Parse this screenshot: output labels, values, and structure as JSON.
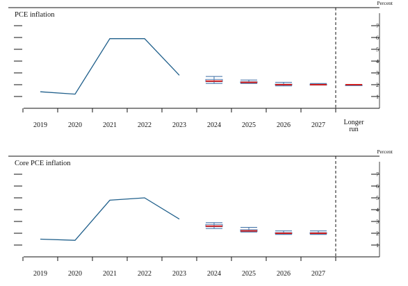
{
  "chart_data": [
    {
      "type": "line",
      "title": "PCE inflation",
      "ylabel": "Percent",
      "ylim": [
        0,
        8
      ],
      "yticks": [
        "1",
        "2",
        "3",
        "4",
        "5",
        "6",
        "7"
      ],
      "categories": [
        "2019",
        "2020",
        "2021",
        "2022",
        "2023",
        "2024",
        "2025",
        "2026",
        "2027",
        "Longer run"
      ],
      "series": [
        {
          "values": [
            1.4,
            1.2,
            5.9,
            5.9,
            2.8,
            null,
            null,
            null,
            null,
            null
          ]
        }
      ],
      "projections": [
        {
          "category": "2024",
          "low": 2.1,
          "high": 2.7,
          "central_low": 2.25,
          "central_high": 2.45,
          "median": 2.3
        },
        {
          "category": "2025",
          "low": 2.1,
          "high": 2.4,
          "central_low": 2.15,
          "central_high": 2.25,
          "median": 2.2
        },
        {
          "category": "2026",
          "low": 1.9,
          "high": 2.2,
          "central_low": 2.0,
          "central_high": 2.05,
          "median": 2.0
        },
        {
          "category": "2027",
          "low": 2.0,
          "high": 2.1,
          "central_low": 2.0,
          "central_high": 2.05,
          "median": 2.0
        },
        {
          "category": "Longer run",
          "low": 2.0,
          "high": 2.0,
          "central_low": 2.0,
          "central_high": 2.0,
          "median": 2.0
        }
      ]
    },
    {
      "type": "line",
      "title": "Core PCE inflation",
      "ylabel": "Percent",
      "ylim": [
        0,
        8
      ],
      "yticks": [
        "1",
        "2",
        "3",
        "4",
        "5",
        "6",
        "7"
      ],
      "categories": [
        "2019",
        "2020",
        "2021",
        "2022",
        "2023",
        "2024",
        "2025",
        "2026",
        "2027"
      ],
      "series": [
        {
          "values": [
            1.5,
            1.4,
            4.8,
            5.0,
            3.2,
            null,
            null,
            null,
            null
          ]
        }
      ],
      "projections": [
        {
          "category": "2024",
          "low": 2.4,
          "high": 2.9,
          "central_low": 2.55,
          "central_high": 2.75,
          "median": 2.6
        },
        {
          "category": "2025",
          "low": 2.1,
          "high": 2.5,
          "central_low": 2.15,
          "central_high": 2.3,
          "median": 2.2
        },
        {
          "category": "2026",
          "low": 1.9,
          "high": 2.2,
          "central_low": 1.95,
          "central_high": 2.05,
          "median": 2.0
        },
        {
          "category": "2027",
          "low": 1.9,
          "high": 2.2,
          "central_low": 1.95,
          "central_high": 2.05,
          "median": 2.0
        }
      ]
    }
  ],
  "colors": {
    "history_line": "#1f5f8b",
    "range": "#3b6ea5",
    "central_tendency": "#5b85b8",
    "median": "#d01f1f",
    "axis": "#111111"
  }
}
